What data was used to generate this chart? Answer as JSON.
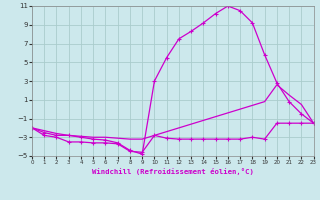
{
  "background_color": "#cce8ec",
  "grid_color": "#aacccc",
  "line_color": "#cc00cc",
  "x_min": 0,
  "x_max": 23,
  "y_min": -5,
  "y_max": 11,
  "x_ticks": [
    0,
    1,
    2,
    3,
    4,
    5,
    6,
    7,
    8,
    9,
    10,
    11,
    12,
    13,
    14,
    15,
    16,
    17,
    18,
    19,
    20,
    21,
    22,
    23
  ],
  "y_ticks": [
    -5,
    -3,
    -1,
    1,
    3,
    5,
    7,
    9,
    11
  ],
  "xlabel": "Windchill (Refroidissement éolien,°C)",
  "line_top_x": [
    0,
    1,
    2,
    3,
    4,
    5,
    6,
    7,
    8,
    9,
    10,
    11,
    12,
    13,
    14,
    15,
    16,
    17,
    18,
    19,
    20,
    21,
    22,
    23
  ],
  "line_top_y": [
    -2.0,
    -2.5,
    -2.8,
    -2.8,
    -3.0,
    -3.2,
    -3.3,
    -3.6,
    -4.4,
    -4.8,
    3.0,
    5.5,
    7.5,
    8.3,
    9.2,
    10.2,
    11.0,
    10.5,
    9.2,
    5.8,
    2.8,
    0.8,
    -0.5,
    -1.5
  ],
  "line_mid_x": [
    0,
    1,
    2,
    3,
    4,
    5,
    6,
    7,
    8,
    9,
    10,
    11,
    12,
    13,
    14,
    15,
    16,
    17,
    18,
    19,
    20,
    21,
    22,
    23
  ],
  "line_mid_y": [
    -2.0,
    -2.3,
    -2.6,
    -2.8,
    -2.9,
    -3.0,
    -3.0,
    -3.1,
    -3.2,
    -3.2,
    -2.8,
    -2.4,
    -2.0,
    -1.6,
    -1.2,
    -0.8,
    -0.4,
    0.0,
    0.4,
    0.8,
    2.6,
    1.5,
    0.5,
    -1.5
  ],
  "line_bot_x": [
    0,
    1,
    2,
    3,
    4,
    5,
    6,
    7,
    8,
    9,
    10,
    11,
    12,
    13,
    14,
    15,
    16,
    17,
    18,
    19,
    20,
    21,
    22,
    23
  ],
  "line_bot_y": [
    -2.0,
    -2.8,
    -3.0,
    -3.5,
    -3.5,
    -3.6,
    -3.6,
    -3.7,
    -4.5,
    -4.6,
    -2.8,
    -3.1,
    -3.2,
    -3.2,
    -3.2,
    -3.2,
    -3.2,
    -3.2,
    -3.0,
    -3.2,
    -1.5,
    -1.5,
    -1.5,
    -1.5
  ]
}
